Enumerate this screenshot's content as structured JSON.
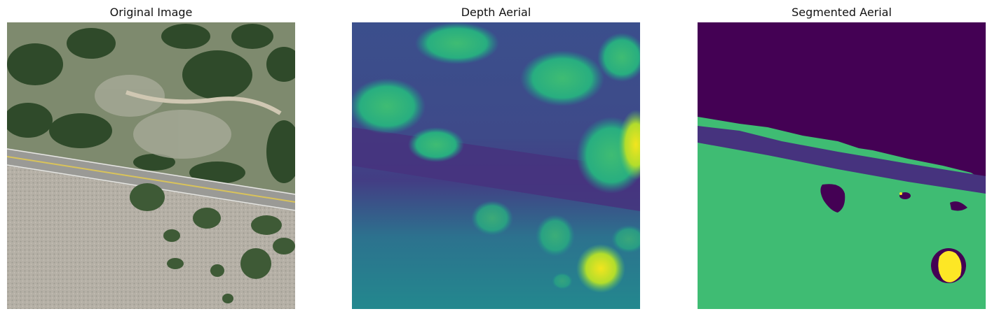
{
  "panels": [
    {
      "title": "Original Image"
    },
    {
      "title": "Depth Aerial"
    },
    {
      "title": "Segmented Aerial"
    }
  ],
  "colors": {
    "viridis_dark": "#440154",
    "viridis_purple": "#46337e",
    "viridis_blue": "#31688e",
    "viridis_teal": "#21918c",
    "viridis_green": "#3fbc73",
    "viridis_yellow": "#fde725"
  }
}
